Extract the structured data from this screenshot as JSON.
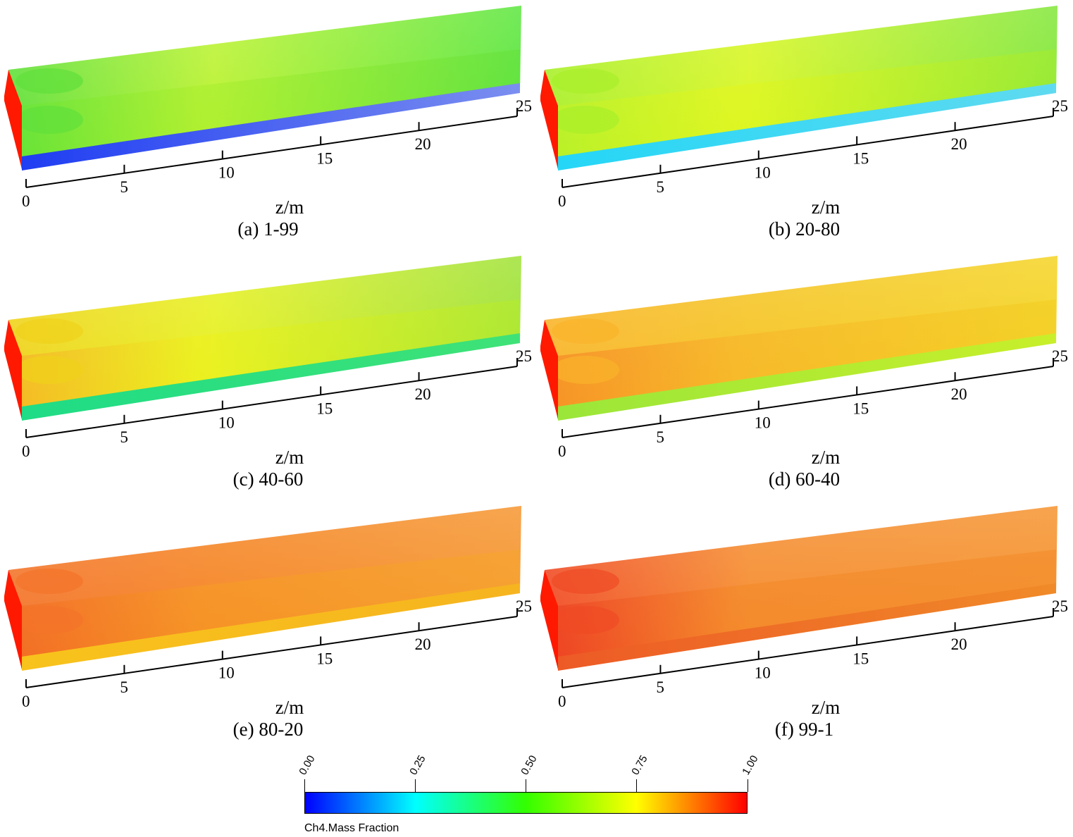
{
  "axis": {
    "title": "z/m",
    "ticks": [
      "0",
      "5",
      "10",
      "15",
      "20",
      "25"
    ]
  },
  "panels": [
    {
      "caption": "(a) 1-99",
      "colors": {
        "front": "#ff1a00",
        "top_a": "#5fe03a",
        "top_b": "#b9f22c",
        "top_c": "#55e537",
        "side_a": "#6be533",
        "side_b": "#a9ee2c",
        "side_c": "#63e039",
        "bottom_a": "#1f3df2",
        "bottom_b": "#7b8ef0"
      }
    },
    {
      "caption": "(b) 20-80",
      "colors": {
        "front": "#ff1a00",
        "top_a": "#a8ef2a",
        "top_b": "#d7f61f",
        "top_c": "#7de632",
        "side_a": "#c6f224",
        "side_b": "#e4f61d",
        "side_c": "#a7ec2a",
        "bottom_a": "#25d6f6",
        "bottom_b": "#5fdaf0"
      }
    },
    {
      "caption": "(c) 40-60",
      "colors": {
        "front": "#ff1a00",
        "top_a": "#f0d21a",
        "top_b": "#e6f01c",
        "top_c": "#9be12f",
        "side_a": "#f8a92a",
        "side_b": "#eef11b",
        "side_c": "#b6ec28",
        "bottom_a": "#1fdc86",
        "bottom_b": "#3fe277"
      }
    },
    {
      "caption": "(d) 60-40",
      "colors": {
        "front": "#ff1a00",
        "top_a": "#f9b429",
        "top_b": "#f5c31f",
        "top_c": "#f4d21c",
        "side_a": "#f57a22",
        "side_b": "#f8b02a",
        "side_c": "#f3cd1f",
        "bottom_a": "#9be63a",
        "bottom_b": "#c8ef2a"
      }
    },
    {
      "caption": "(e) 80-20",
      "colors": {
        "front": "#ff1a00",
        "top_a": "#f3742a",
        "top_b": "#f5821f",
        "top_c": "#f59229",
        "side_a": "#f26a1e",
        "side_b": "#f69d24",
        "side_c": "#f5a52a",
        "bottom_a": "#f8c31c",
        "bottom_b": "#f6b41f"
      }
    },
    {
      "caption": "(f) 99-1",
      "colors": {
        "front": "#ff1a00",
        "top_a": "#f04a24",
        "top_b": "#f58a2a",
        "top_c": "#f58f28",
        "side_a": "#ec3d20",
        "side_b": "#f38726",
        "side_c": "#f38a27",
        "bottom_a": "#ed5a26",
        "bottom_b": "#f08a28"
      }
    }
  ],
  "colorbar": {
    "title": "Ch4.Mass Fraction",
    "ticks": [
      "0.00",
      "0.25",
      "0.50",
      "0.75",
      "1.00"
    ],
    "colors": [
      "#0000ff",
      "#00ffff",
      "#33ff00",
      "#ffff00",
      "#ff0000"
    ]
  }
}
